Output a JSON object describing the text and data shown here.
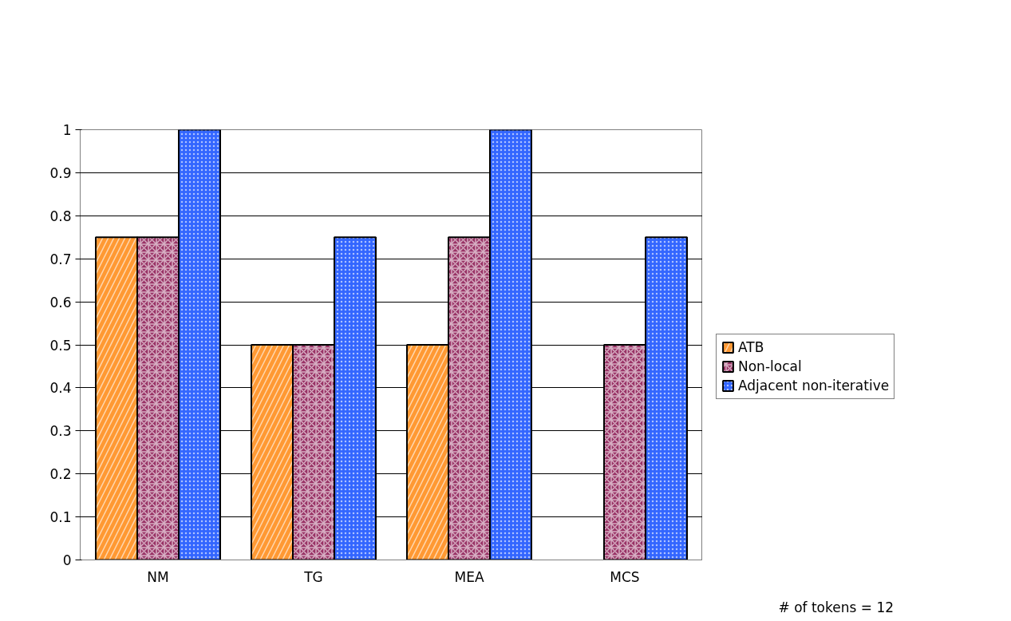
{
  "chart_data": {
    "type": "bar",
    "categories": [
      "NM",
      "TG",
      "MEA",
      "MCS"
    ],
    "series": [
      {
        "name": "ATB",
        "color": "#ff9933",
        "values": [
          0.75,
          0.5,
          0.5,
          null
        ]
      },
      {
        "name": "Non-local",
        "color": "#993366",
        "values": [
          0.75,
          0.5,
          0.75,
          0.5
        ]
      },
      {
        "name": "Adjacent non-iterative",
        "color": "#3366ff",
        "values": [
          1,
          0.75,
          1,
          0.75
        ]
      }
    ],
    "ylim": [
      0,
      1
    ],
    "yticks": [
      0,
      0.1,
      0.2,
      0.3,
      0.4,
      0.5,
      0.6,
      0.7,
      0.8,
      0.9,
      1
    ],
    "grid": "y",
    "legend": "right",
    "annotations": [
      "# of tokens = 12"
    ]
  }
}
